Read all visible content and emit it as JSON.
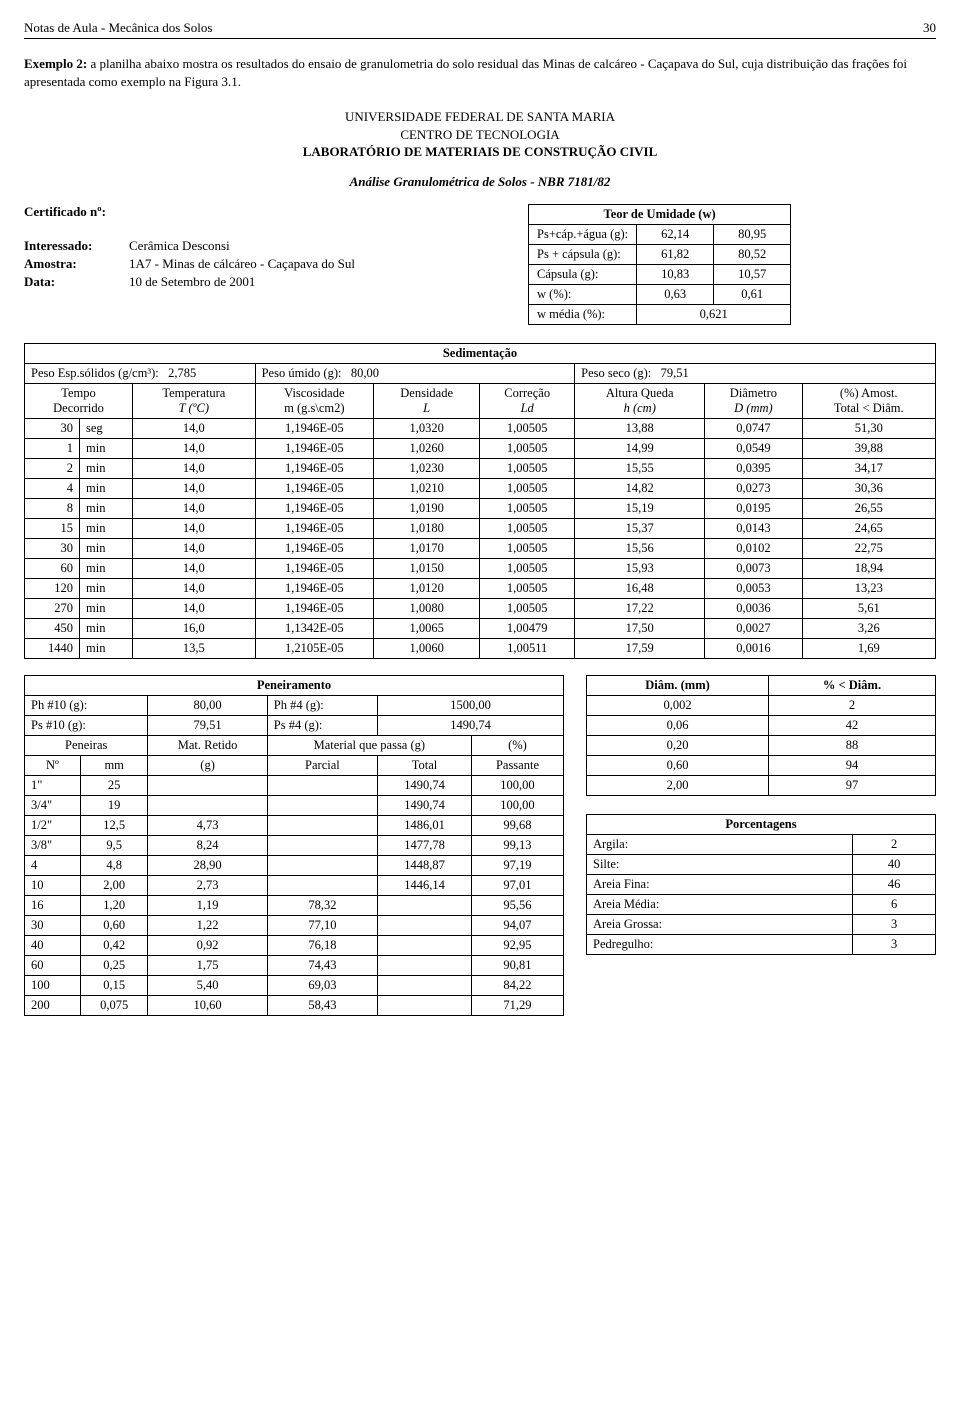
{
  "header": {
    "title": "Notas de Aula - Mecânica dos Solos",
    "page": "30"
  },
  "intro": "Exemplo 2: a planilha abaixo mostra os resultados do ensaio de granulometria do solo residual das Minas de calcáreo - Caçapava do Sul, cuja distribuição das frações foi apresentada como exemplo na Figura 3.1.",
  "lab": {
    "l1": "UNIVERSIDADE FEDERAL DE SANTA MARIA",
    "l2": "CENTRO DE TECNOLOGIA",
    "l3": "LABORATÓRIO DE MATERIAIS DE CONSTRUÇÃO CIVIL",
    "l4": "Análise Granulométrica de Solos - NBR 7181/82"
  },
  "info": {
    "certificado_lbl": "Certificado nº:",
    "interessado_lbl": "Interessado:",
    "interessado": "Cerâmica Desconsi",
    "amostra_lbl": "Amostra:",
    "amostra": "1A7 - Minas de cálcáreo - Caçapava do Sul",
    "data_lbl": "Data:",
    "data": "10 de Setembro de 2001"
  },
  "umid": {
    "title": "Teor de Umidade (w)",
    "rows": [
      {
        "lbl": "Ps+cáp.+água (g):",
        "a": "62,14",
        "b": "80,95"
      },
      {
        "lbl": "Ps + cápsula (g):",
        "a": "61,82",
        "b": "80,52"
      },
      {
        "lbl": "Cápsula (g):",
        "a": "10,83",
        "b": "10,57"
      },
      {
        "lbl": "w (%):",
        "a": "0,63",
        "b": "0,61"
      }
    ],
    "media_lbl": "w média (%):",
    "media": "0,621"
  },
  "sed": {
    "title": "Sedimentação",
    "peso_esp_lbl": "Peso Esp.sólidos (g/cm³):",
    "peso_esp": "2,785",
    "peso_umido_lbl": "Peso úmido (g):",
    "peso_umido": "80,00",
    "peso_seco_lbl": "Peso seco (g):",
    "peso_seco": "79,51",
    "hdr": {
      "tempo1": "Tempo",
      "tempo2": "Decorrido",
      "temp1": "Temperatura",
      "temp2": "T  (ºC)",
      "visc1": "Viscosidade",
      "visc2": "m (g.s\\cm2)",
      "dens1": "Densidade",
      "dens2": "L",
      "corr1": "Correção",
      "corr2": "Ld",
      "alt1": "Altura Queda",
      "alt2": "h  (cm)",
      "diam1": "Diâmetro",
      "diam2": "D  (mm)",
      "pct1": "(%) Amost.",
      "pct2": "Total < Diâm."
    },
    "rows": [
      [
        "30",
        "seg",
        "14,0",
        "1,1946E-05",
        "1,0320",
        "1,00505",
        "13,88",
        "0,0747",
        "51,30"
      ],
      [
        "1",
        "min",
        "14,0",
        "1,1946E-05",
        "1,0260",
        "1,00505",
        "14,99",
        "0,0549",
        "39,88"
      ],
      [
        "2",
        "min",
        "14,0",
        "1,1946E-05",
        "1,0230",
        "1,00505",
        "15,55",
        "0,0395",
        "34,17"
      ],
      [
        "4",
        "min",
        "14,0",
        "1,1946E-05",
        "1,0210",
        "1,00505",
        "14,82",
        "0,0273",
        "30,36"
      ],
      [
        "8",
        "min",
        "14,0",
        "1,1946E-05",
        "1,0190",
        "1,00505",
        "15,19",
        "0,0195",
        "26,55"
      ],
      [
        "15",
        "min",
        "14,0",
        "1,1946E-05",
        "1,0180",
        "1,00505",
        "15,37",
        "0,0143",
        "24,65"
      ],
      [
        "30",
        "min",
        "14,0",
        "1,1946E-05",
        "1,0170",
        "1,00505",
        "15,56",
        "0,0102",
        "22,75"
      ],
      [
        "60",
        "min",
        "14,0",
        "1,1946E-05",
        "1,0150",
        "1,00505",
        "15,93",
        "0,0073",
        "18,94"
      ],
      [
        "120",
        "min",
        "14,0",
        "1,1946E-05",
        "1,0120",
        "1,00505",
        "16,48",
        "0,0053",
        "13,23"
      ],
      [
        "270",
        "min",
        "14,0",
        "1,1946E-05",
        "1,0080",
        "1,00505",
        "17,22",
        "0,0036",
        "5,61"
      ],
      [
        "450",
        "min",
        "16,0",
        "1,1342E-05",
        "1,0065",
        "1,00479",
        "17,50",
        "0,0027",
        "3,26"
      ],
      [
        "1440",
        "min",
        "13,5",
        "1,2105E-05",
        "1,0060",
        "1,00511",
        "17,59",
        "0,0016",
        "1,69"
      ]
    ]
  },
  "pen": {
    "title": "Peneiramento",
    "ph10_lbl": "Ph #10 (g):",
    "ph10": "80,00",
    "ph4_lbl": "Ph #4 (g):",
    "ph4": "1500,00",
    "ps10_lbl": "Ps #10 (g):",
    "ps10": "79,51",
    "ps4_lbl": "Ps #4 (g):",
    "ps4": "1490,74",
    "hdr": {
      "peneiras": "Peneiras",
      "mat_ret": "Mat. Retido",
      "mat_passa": "Material que passa (g)",
      "pct": "(%)",
      "no": "Nº",
      "mm": "mm",
      "g": "(g)",
      "parcial": "Parcial",
      "total": "Total",
      "passante": "Passante"
    },
    "rows": [
      [
        "1\"",
        "25",
        "",
        "",
        "1490,74",
        "100,00"
      ],
      [
        "3/4\"",
        "19",
        "",
        "",
        "1490,74",
        "100,00"
      ],
      [
        "1/2\"",
        "12,5",
        "4,73",
        "",
        "1486,01",
        "99,68"
      ],
      [
        "3/8\"",
        "9,5",
        "8,24",
        "",
        "1477,78",
        "99,13"
      ],
      [
        "4",
        "4,8",
        "28,90",
        "",
        "1448,87",
        "97,19"
      ],
      [
        "10",
        "2,00",
        "2,73",
        "",
        "1446,14",
        "97,01"
      ],
      [
        "16",
        "1,20",
        "1,19",
        "78,32",
        "",
        "95,56"
      ],
      [
        "30",
        "0,60",
        "1,22",
        "77,10",
        "",
        "94,07"
      ],
      [
        "40",
        "0,42",
        "0,92",
        "76,18",
        "",
        "92,95"
      ],
      [
        "60",
        "0,25",
        "1,75",
        "74,43",
        "",
        "90,81"
      ],
      [
        "100",
        "0,15",
        "5,40",
        "69,03",
        "",
        "84,22"
      ],
      [
        "200",
        "0,075",
        "10,60",
        "58,43",
        "",
        "71,29"
      ]
    ]
  },
  "diam": {
    "h1": "Diâm. (mm)",
    "h2": "% < Diâm.",
    "rows": [
      [
        "0,002",
        "2"
      ],
      [
        "0,06",
        "42"
      ],
      [
        "0,20",
        "88"
      ],
      [
        "0,60",
        "94"
      ],
      [
        "2,00",
        "97"
      ]
    ]
  },
  "porc": {
    "title": "Porcentagens",
    "rows": [
      [
        "Argila:",
        "2"
      ],
      [
        "Silte:",
        "40"
      ],
      [
        "Areia Fina:",
        "46"
      ],
      [
        "Areia Média:",
        "6"
      ],
      [
        "Areia Grossa:",
        "3"
      ],
      [
        "Pedregulho:",
        "3"
      ]
    ]
  }
}
